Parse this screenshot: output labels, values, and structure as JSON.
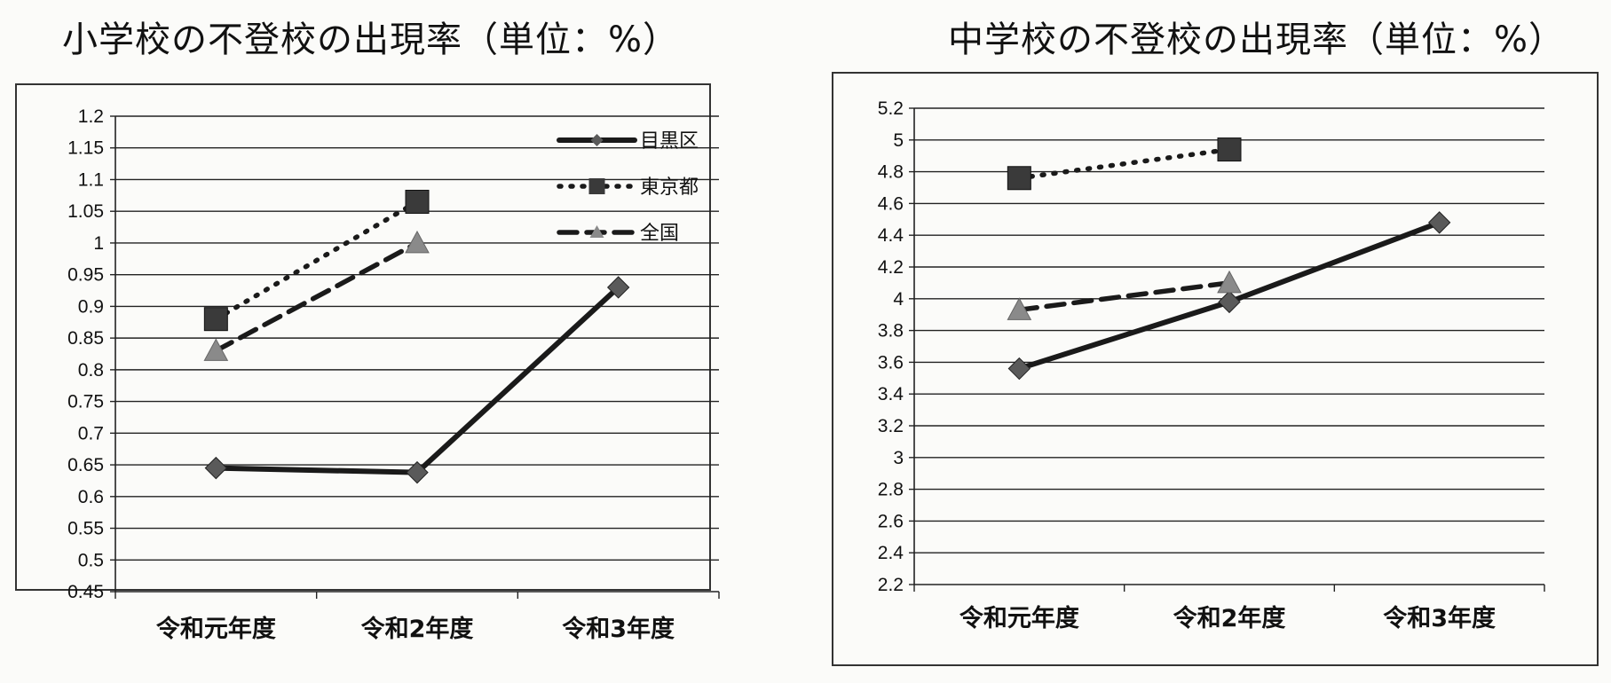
{
  "chart_data": [
    {
      "type": "line",
      "title": "小学校の不登校の出現率（単位：%）",
      "categories": [
        "令和元年度",
        "令和2年度",
        "令和3年度"
      ],
      "ylim": [
        0.45,
        1.2
      ],
      "ytick_step": 0.05,
      "ytick_labels": [
        "0.45",
        "0.5",
        "0.55",
        "0.6",
        "0.65",
        "0.7",
        "0.75",
        "0.8",
        "0.85",
        "0.9",
        "0.95",
        "1",
        "1.05",
        "1.1",
        "1.15",
        "1.2"
      ],
      "grid": true,
      "legend_position": "top-right",
      "series": [
        {
          "name": "目黒区",
          "values": [
            0.645,
            0.638,
            0.93
          ],
          "marker": "diamond",
          "line_style": "solid",
          "color": "#1a1a1a",
          "marker_color": "#5a5a5a"
        },
        {
          "name": "東京都",
          "values": [
            0.88,
            1.065,
            null
          ],
          "marker": "square",
          "line_style": "dotted",
          "color": "#1a1a1a",
          "marker_color": "#3a3a3a"
        },
        {
          "name": "全国",
          "values": [
            0.83,
            1.0,
            null
          ],
          "marker": "triangle",
          "line_style": "dashed",
          "color": "#1a1a1a",
          "marker_color": "#8a8a8a"
        }
      ]
    },
    {
      "type": "line",
      "title": "中学校の不登校の出現率（単位：%）",
      "categories": [
        "令和元年度",
        "令和2年度",
        "令和3年度"
      ],
      "ylim": [
        2.2,
        5.2
      ],
      "ytick_step": 0.2,
      "ytick_labels": [
        "2.2",
        "2.4",
        "2.6",
        "2.8",
        "3",
        "3.2",
        "3.4",
        "3.6",
        "3.8",
        "4",
        "4.2",
        "4.4",
        "4.6",
        "4.8",
        "5",
        "5.2"
      ],
      "grid": true,
      "series": [
        {
          "name": "目黒区",
          "values": [
            3.56,
            3.98,
            4.48
          ],
          "marker": "diamond",
          "line_style": "solid",
          "color": "#1a1a1a",
          "marker_color": "#5a5a5a"
        },
        {
          "name": "東京都",
          "values": [
            4.76,
            4.94,
            null
          ],
          "marker": "square",
          "line_style": "dotted",
          "color": "#1a1a1a",
          "marker_color": "#3a3a3a"
        },
        {
          "name": "全国",
          "values": [
            3.93,
            4.1,
            null
          ],
          "marker": "triangle",
          "line_style": "dashed",
          "color": "#1a1a1a",
          "marker_color": "#8a8a8a"
        }
      ]
    }
  ]
}
